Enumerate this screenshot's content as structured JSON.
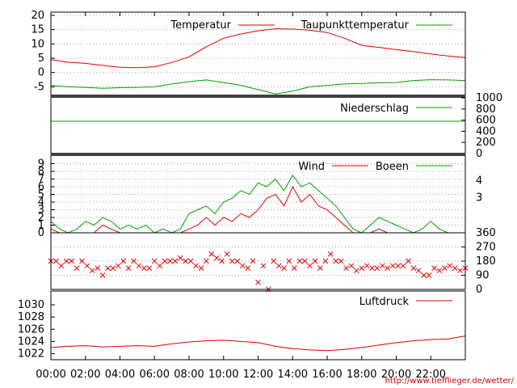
{
  "colors": {
    "red": "#e00000",
    "green": "#00a000",
    "axis": "#000000",
    "grid": "#a0a0a0"
  },
  "x_axis": {
    "ticks": [
      "00:00",
      "02:00",
      "04:00",
      "06:00",
      "08:00",
      "10:00",
      "12:00",
      "14:00",
      "16:00",
      "18:00",
      "20:00",
      "22:00"
    ],
    "range_hours": [
      0,
      24
    ]
  },
  "footer": {
    "url": "http://www.tiefflieger.de/wetter/"
  },
  "chart_data": [
    {
      "type": "line",
      "panel": "temperature",
      "ylim": [
        -8,
        20
      ],
      "y_ticks_left": [
        "20",
        "15",
        "10",
        "5",
        "0",
        "-5"
      ],
      "grid": true,
      "legend_placement": "top-right",
      "series": [
        {
          "name": "Temperatur",
          "color": "#e00000",
          "x": [
            0,
            1,
            2,
            3,
            4,
            5,
            6,
            7,
            8,
            9,
            10,
            11,
            12,
            13,
            14,
            15,
            16,
            17,
            18,
            19,
            20,
            21,
            22,
            23,
            24
          ],
          "values": [
            4.5,
            3.6,
            3.2,
            2.5,
            1.8,
            1.7,
            2.0,
            3.5,
            5.5,
            9.0,
            12.0,
            13.5,
            14.6,
            15.3,
            15.2,
            14.8,
            14.0,
            12.0,
            9.5,
            8.8,
            8.0,
            7.3,
            6.5,
            5.8,
            5.2
          ]
        },
        {
          "name": "Taupunkttemperatur",
          "color": "#00a000",
          "x": [
            0,
            1,
            2,
            3,
            4,
            5,
            6,
            7,
            8,
            9,
            10,
            11,
            12,
            13,
            14,
            15,
            16,
            17,
            18,
            19,
            20,
            21,
            22,
            23,
            24
          ],
          "values": [
            -4.5,
            -5.0,
            -5.2,
            -5.5,
            -5.3,
            -5.2,
            -5.0,
            -4.0,
            -3.2,
            -2.6,
            -3.5,
            -4.5,
            -6.0,
            -7.5,
            -6.5,
            -5.0,
            -4.5,
            -4.0,
            -3.8,
            -3.6,
            -3.5,
            -2.8,
            -2.5,
            -2.6,
            -2.8
          ]
        }
      ]
    },
    {
      "type": "line",
      "panel": "precipitation",
      "ylim": [
        0,
        1000
      ],
      "y_ticks_right": [
        "1000",
        "800",
        "600",
        "400",
        "200",
        "0"
      ],
      "grid": false,
      "legend_placement": "top-right",
      "series": [
        {
          "name": "Niederschlag",
          "color": "#00a000",
          "x": [
            0,
            24
          ],
          "values": [
            580,
            580
          ]
        }
      ]
    },
    {
      "type": "line",
      "panel": "wind",
      "ylim": [
        0,
        10
      ],
      "y_ticks_left": [
        "9",
        "8",
        "7",
        "6",
        "5",
        "4",
        "3",
        "2",
        "1",
        "0"
      ],
      "y_ticks_right": [
        "4",
        "3"
      ],
      "grid": true,
      "legend_placement": "top-right",
      "series": [
        {
          "name": "Wind",
          "color": "#e00000",
          "x": [
            0,
            0.5,
            1,
            1.5,
            2,
            2.5,
            3,
            3.5,
            4,
            4.5,
            5,
            5.5,
            6,
            6.5,
            7,
            7.5,
            8,
            8.5,
            9,
            9.5,
            10,
            10.5,
            11,
            11.5,
            12,
            12.5,
            13,
            13.5,
            14,
            14.5,
            15,
            15.5,
            16,
            16.5,
            17,
            17.5,
            18,
            18.5,
            19,
            19.5,
            20,
            20.5,
            21,
            21.5,
            22,
            22.5,
            23,
            23.5,
            24
          ],
          "values": [
            0.5,
            0,
            0,
            0,
            0,
            0,
            1,
            0.5,
            0,
            0,
            0,
            0,
            0,
            0,
            0,
            0,
            0.5,
            1,
            2,
            1,
            2,
            1.5,
            2.5,
            2,
            3,
            4.5,
            5,
            3.5,
            6,
            4,
            5,
            3.5,
            3,
            2,
            1,
            0,
            0,
            0,
            0.5,
            0,
            0,
            0,
            0,
            0,
            0,
            0,
            0,
            0,
            0
          ]
        },
        {
          "name": "Boeen",
          "color": "#00a000",
          "x": [
            0,
            0.5,
            1,
            1.5,
            2,
            2.5,
            3,
            3.5,
            4,
            4.5,
            5,
            5.5,
            6,
            6.5,
            7,
            7.5,
            8,
            8.5,
            9,
            9.5,
            10,
            10.5,
            11,
            11.5,
            12,
            12.5,
            13,
            13.5,
            14,
            14.5,
            15,
            15.5,
            16,
            16.5,
            17,
            17.5,
            18,
            18.5,
            19,
            19.5,
            20,
            20.5,
            21,
            21.5,
            22,
            22.5,
            23,
            23.5,
            24
          ],
          "values": [
            1.5,
            0.5,
            0,
            0.5,
            1.5,
            1,
            2,
            1.5,
            0.5,
            1,
            0.5,
            1,
            0,
            0.5,
            0,
            0.5,
            2.5,
            3,
            3.5,
            2.5,
            4,
            4.5,
            5.5,
            5,
            6.5,
            6,
            7,
            5.5,
            7.5,
            6,
            6.5,
            5.5,
            4.5,
            3.5,
            2,
            0.5,
            0,
            1,
            2,
            1.5,
            1,
            0.5,
            0,
            0.5,
            1.5,
            0.5,
            0,
            0,
            0
          ]
        }
      ]
    },
    {
      "type": "scatter",
      "panel": "wind_direction",
      "ylim": [
        0,
        360
      ],
      "y_ticks_right": [
        "360",
        "270",
        "180",
        "90",
        "0"
      ],
      "grid": true,
      "series": [
        {
          "color": "#e00000",
          "x": [
            0,
            0.3,
            0.6,
            0.9,
            1.2,
            1.5,
            1.8,
            2.1,
            2.4,
            2.7,
            3.0,
            3.3,
            3.6,
            3.9,
            4.2,
            4.5,
            4.8,
            5.1,
            5.4,
            5.7,
            6.0,
            6.3,
            6.6,
            6.9,
            7.2,
            7.5,
            7.8,
            8.1,
            8.4,
            8.7,
            9.0,
            9.3,
            9.6,
            9.9,
            10.2,
            10.5,
            10.8,
            11.1,
            11.4,
            11.7,
            12.0,
            12.3,
            12.6,
            12.9,
            13.2,
            13.5,
            13.8,
            14.1,
            14.4,
            14.7,
            15.0,
            15.3,
            15.6,
            15.9,
            16.2,
            16.5,
            16.8,
            17.1,
            17.4,
            17.7,
            18.0,
            18.3,
            18.6,
            18.9,
            19.2,
            19.5,
            19.8,
            20.1,
            20.4,
            20.7,
            21.0,
            21.3,
            21.6,
            21.9,
            22.2,
            22.5,
            22.8,
            23.1,
            23.4,
            23.7,
            24.0
          ],
          "values": [
            180,
            180,
            150,
            180,
            180,
            135,
            180,
            150,
            120,
            135,
            90,
            135,
            135,
            150,
            180,
            135,
            180,
            150,
            135,
            135,
            180,
            150,
            180,
            180,
            180,
            200,
            180,
            180,
            150,
            135,
            180,
            225,
            200,
            180,
            225,
            180,
            180,
            150,
            135,
            180,
            45,
            150,
            0,
            180,
            150,
            135,
            180,
            135,
            180,
            180,
            150,
            180,
            135,
            180,
            225,
            180,
            180,
            135,
            150,
            120,
            135,
            150,
            135,
            135,
            150,
            135,
            150,
            150,
            150,
            180,
            135,
            120,
            90,
            90,
            135,
            120,
            135,
            150,
            135,
            120,
            135
          ]
        }
      ]
    },
    {
      "type": "line",
      "panel": "pressure",
      "ylim": [
        1021,
        1032
      ],
      "y_ticks_left": [
        "1030",
        "1028",
        "1026",
        "1024",
        "1022"
      ],
      "grid": false,
      "legend_placement": "top-right",
      "series": [
        {
          "name": "Luftdruck",
          "color": "#e00000",
          "x": [
            0,
            1,
            2,
            3,
            4,
            5,
            6,
            7,
            8,
            9,
            10,
            11,
            12,
            13,
            14,
            15,
            16,
            17,
            18,
            19,
            20,
            21,
            22,
            23,
            24
          ],
          "values": [
            1023.0,
            1023.2,
            1023.3,
            1023.1,
            1023.2,
            1023.3,
            1023.2,
            1023.6,
            1023.9,
            1024.1,
            1024.2,
            1024.0,
            1023.8,
            1023.2,
            1022.8,
            1022.6,
            1022.5,
            1022.7,
            1023.0,
            1023.4,
            1023.8,
            1024.1,
            1024.3,
            1024.4,
            1024.9
          ]
        }
      ]
    }
  ],
  "legends": {
    "temp_red": "Temperatur",
    "temp_green": "Taupunkttemperatur",
    "precip": "Niederschlag",
    "wind_red": "Wind",
    "wind_green": "Boeen",
    "pressure": "Luftdruck"
  }
}
